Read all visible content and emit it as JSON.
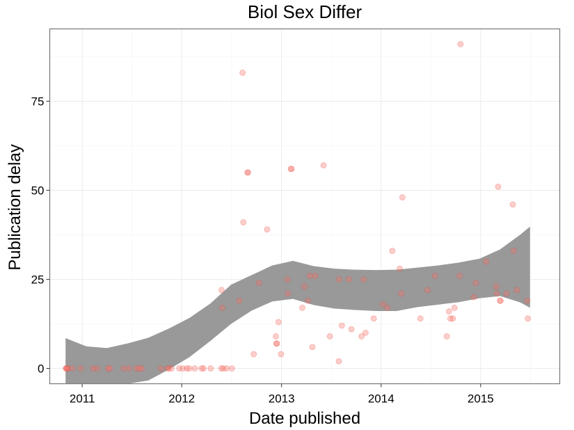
{
  "chart_data": {
    "type": "scatter",
    "title": "Biol Sex Differ",
    "xlabel": "Date published",
    "ylabel": "Publication delay",
    "x_ticks": [
      "2011",
      "2012",
      "2013",
      "2014",
      "2015"
    ],
    "y_ticks": [
      0,
      25,
      50,
      75
    ],
    "xlim": [
      "2010-09-04",
      "2015-10-18"
    ],
    "ylim": [
      -4.3,
      95.3
    ],
    "grid": true,
    "point_color": "#F8766D",
    "point_alpha": 0.35,
    "band_color": "#999999",
    "points": [
      [
        "2010-11-02",
        0
      ],
      [
        "2010-11-04",
        0
      ],
      [
        "2010-11-06",
        0
      ],
      [
        "2010-11-08",
        0
      ],
      [
        "2010-11-26",
        0
      ],
      [
        "2010-12-27",
        0
      ],
      [
        "2011-02-10",
        0
      ],
      [
        "2011-02-25",
        0
      ],
      [
        "2011-04-06",
        0
      ],
      [
        "2011-04-12",
        0
      ],
      [
        "2011-06-02",
        0
      ],
      [
        "2011-06-21",
        0
      ],
      [
        "2011-07-19",
        0
      ],
      [
        "2011-07-30",
        0
      ],
      [
        "2011-08-07",
        0
      ],
      [
        "2011-10-17",
        0
      ],
      [
        "2011-11-12",
        0
      ],
      [
        "2011-11-14",
        0
      ],
      [
        "2011-11-24",
        0
      ],
      [
        "2011-12-23",
        0
      ],
      [
        "2012-01-05",
        0
      ],
      [
        "2012-01-20",
        0
      ],
      [
        "2012-01-29",
        0
      ],
      [
        "2012-02-18",
        0
      ],
      [
        "2012-03-14",
        0
      ],
      [
        "2012-03-21",
        0
      ],
      [
        "2012-04-16",
        0
      ],
      [
        "2012-05-25",
        0
      ],
      [
        "2012-06-01",
        0
      ],
      [
        "2012-06-13",
        0
      ],
      [
        "2012-07-03",
        0
      ],
      [
        "2012-05-26",
        22
      ],
      [
        "2012-05-28",
        17
      ],
      [
        "2012-07-30",
        19
      ],
      [
        "2012-08-11",
        83
      ],
      [
        "2012-08-14",
        41
      ],
      [
        "2012-08-29",
        55
      ],
      [
        "2012-08-31",
        55
      ],
      [
        "2012-09-21",
        4
      ],
      [
        "2012-10-10",
        24
      ],
      [
        "2012-11-09",
        39
      ],
      [
        "2012-12-11",
        9
      ],
      [
        "2012-12-13",
        7
      ],
      [
        "2012-12-15",
        7
      ],
      [
        "2012-12-21",
        13
      ],
      [
        "2012-12-30",
        4
      ],
      [
        "2013-01-22",
        25
      ],
      [
        "2013-01-24",
        21
      ],
      [
        "2013-02-04",
        56
      ],
      [
        "2013-02-07",
        56
      ],
      [
        "2013-03-18",
        17
      ],
      [
        "2013-03-26",
        23
      ],
      [
        "2013-04-08",
        19
      ],
      [
        "2013-04-15",
        26
      ],
      [
        "2013-04-24",
        6
      ],
      [
        "2013-05-05",
        26
      ],
      [
        "2013-06-04",
        57
      ],
      [
        "2013-06-27",
        9
      ],
      [
        "2013-07-30",
        2
      ],
      [
        "2013-07-31",
        25
      ],
      [
        "2013-08-10",
        12
      ],
      [
        "2013-09-05",
        25
      ],
      [
        "2013-09-14",
        11
      ],
      [
        "2013-10-21",
        9
      ],
      [
        "2013-10-29",
        25
      ],
      [
        "2013-11-05",
        10
      ],
      [
        "2013-12-05",
        14
      ],
      [
        "2014-01-08",
        18
      ],
      [
        "2014-01-24",
        17
      ],
      [
        "2014-02-11",
        33
      ],
      [
        "2014-03-10",
        28
      ],
      [
        "2014-03-16",
        21
      ],
      [
        "2014-03-20",
        48
      ],
      [
        "2014-05-25",
        14
      ],
      [
        "2014-06-20",
        22
      ],
      [
        "2014-07-17",
        26
      ],
      [
        "2014-08-30",
        9
      ],
      [
        "2014-09-07",
        16
      ],
      [
        "2014-09-12",
        14
      ],
      [
        "2014-09-21",
        14
      ],
      [
        "2014-09-27",
        17
      ],
      [
        "2014-10-16",
        26
      ],
      [
        "2014-10-19",
        91
      ],
      [
        "2014-12-07",
        20
      ],
      [
        "2014-12-14",
        24
      ],
      [
        "2015-01-21",
        30
      ],
      [
        "2015-02-27",
        23
      ],
      [
        "2015-03-01",
        21
      ],
      [
        "2015-03-06",
        51
      ],
      [
        "2015-03-13",
        19
      ],
      [
        "2015-03-15",
        19
      ],
      [
        "2015-04-06",
        21
      ],
      [
        "2015-04-29",
        46
      ],
      [
        "2015-05-02",
        33
      ],
      [
        "2015-05-14",
        22
      ],
      [
        "2015-06-21",
        19
      ],
      [
        "2015-06-23",
        14
      ]
    ],
    "smooth_band": [
      [
        "2010-11-01",
        8.5,
        -6.5
      ],
      [
        "2011-01-16",
        6.2,
        -10.5
      ],
      [
        "2011-04-01",
        5.7,
        -9
      ],
      [
        "2011-06-16",
        7.0,
        -6.2
      ],
      [
        "2011-08-31",
        8.6,
        -3.4
      ],
      [
        "2011-11-15",
        11.2,
        -0.3
      ],
      [
        "2012-01-30",
        14.2,
        3.2
      ],
      [
        "2012-04-15",
        18.2,
        7.7
      ],
      [
        "2012-06-30",
        23.5,
        12.5
      ],
      [
        "2012-09-13",
        26.2,
        16.2
      ],
      [
        "2012-11-28",
        28.9,
        18.8
      ],
      [
        "2013-02-12",
        30.2,
        19.5
      ],
      [
        "2013-04-29",
        28.7,
        17.8
      ],
      [
        "2013-07-14",
        28.0,
        16.8
      ],
      [
        "2013-09-28",
        27.7,
        16.4
      ],
      [
        "2013-12-13",
        27.6,
        16.1
      ],
      [
        "2014-02-27",
        27.7,
        16.1
      ],
      [
        "2014-05-14",
        28.3,
        17.2
      ],
      [
        "2014-07-29",
        28.9,
        17.9
      ],
      [
        "2014-10-13",
        29.7,
        18.6
      ],
      [
        "2014-12-28",
        30.8,
        19.7
      ],
      [
        "2015-03-13",
        33.4,
        20.3
      ],
      [
        "2015-05-27",
        37.6,
        18.5
      ],
      [
        "2015-07-01",
        39.8,
        17.0
      ]
    ]
  }
}
